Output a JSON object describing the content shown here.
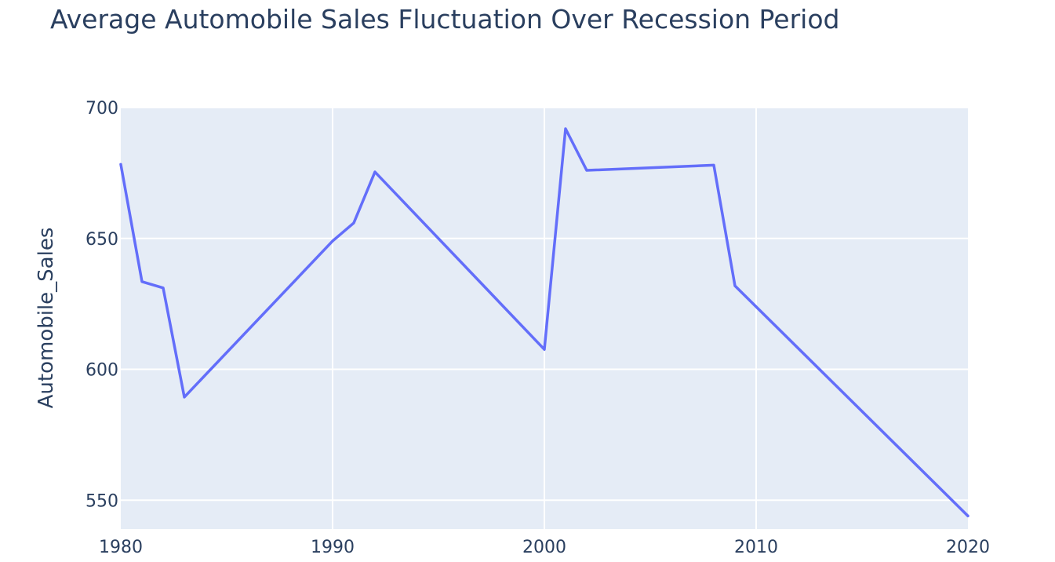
{
  "chart_data": {
    "type": "line",
    "title": "Average Automobile Sales Fluctuation Over Recession Period",
    "xlabel": "",
    "ylabel": "Automobile_Sales",
    "xlim": [
      1980,
      2020
    ],
    "ylim": [
      539,
      700
    ],
    "x_ticks": [
      1980,
      1990,
      2000,
      2010,
      2020
    ],
    "y_ticks": [
      550,
      600,
      650,
      700
    ],
    "grid": true,
    "plot_background": "#e5ecf6",
    "grid_color": "#ffffff",
    "text_color": "#2a3f5f",
    "series": [
      {
        "color": "#636efa",
        "x": [
          1980,
          1981,
          1982,
          1983,
          1990,
          1991,
          1992,
          2000,
          2001,
          2002,
          2008,
          2009,
          2020
        ],
        "y": [
          678.3,
          633.5,
          631.1,
          589.4,
          649.0,
          655.9,
          675.4,
          607.6,
          691.9,
          676.0,
          678.0,
          631.9,
          544.0
        ]
      }
    ]
  }
}
